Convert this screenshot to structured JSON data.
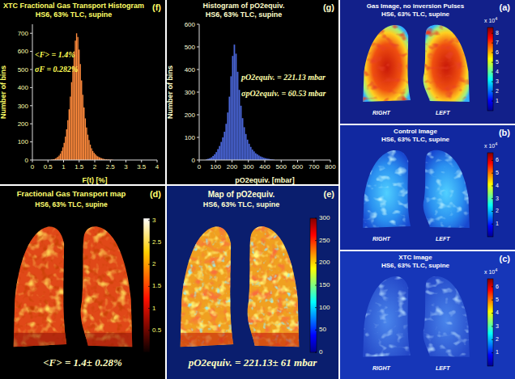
{
  "chart_data": [
    {
      "type": "histogram",
      "panel_label": "(f)",
      "title": "XTC Fractional Gas Transport Histogram",
      "subtitle": "HS6, 63% TLC, supine",
      "xlabel": "F(t) [%]",
      "ylabel": "Number of bins",
      "bins": [
        0.6,
        0.64,
        0.68,
        0.72,
        0.76,
        0.8,
        0.84,
        0.88,
        0.92,
        0.96,
        1,
        1.04,
        1.08,
        1.12,
        1.16,
        1.2,
        1.24,
        1.28,
        1.32,
        1.36,
        1.4,
        1.44,
        1.48,
        1.52,
        1.56,
        1.6,
        1.64,
        1.68,
        1.72,
        1.76,
        1.8,
        1.84,
        1.88,
        1.92,
        1.96,
        2,
        2.04,
        2.08,
        2.12,
        2.16,
        2.2,
        2.24,
        2.28,
        2.32,
        2.36,
        2.4,
        2.44,
        2.48,
        2.52,
        2.56,
        2.6
      ],
      "counts": [
        2,
        3,
        5,
        8,
        12,
        18,
        25,
        35,
        50,
        70,
        95,
        130,
        170,
        220,
        280,
        350,
        430,
        520,
        600,
        660,
        700,
        680,
        610,
        530,
        440,
        360,
        290,
        230,
        180,
        140,
        110,
        85,
        65,
        50,
        40,
        32,
        25,
        20,
        16,
        13,
        10,
        8,
        6,
        5,
        4,
        3,
        3,
        2,
        2,
        1
      ],
      "color": "#ff8a3c",
      "xlim": [
        0,
        4
      ],
      "xticks": [
        0,
        0.5,
        1,
        1.5,
        2,
        2.5,
        3,
        3.5,
        4
      ],
      "ylim": [
        0,
        750
      ],
      "yticks": [
        0,
        100,
        200,
        300,
        400,
        500,
        600,
        700
      ],
      "grid": false,
      "annotations": [
        "<F> = 1.4%",
        "σF = 0.282%"
      ]
    },
    {
      "type": "histogram",
      "panel_label": "(g)",
      "title": "Histogram of pO2equiv.",
      "subtitle": "HS6, 63% TLC, supine",
      "xlabel": "pO2equiv. [mbar]",
      "ylabel": "Number of bins",
      "bins": [
        40,
        50,
        60,
        70,
        80,
        90,
        100,
        110,
        120,
        130,
        140,
        150,
        160,
        170,
        180,
        190,
        200,
        210,
        220,
        230,
        240,
        250,
        260,
        270,
        280,
        290,
        300,
        310,
        320,
        330,
        340,
        350,
        360,
        370,
        380,
        390,
        400,
        410,
        420,
        430,
        440,
        450,
        460
      ],
      "counts": [
        3,
        5,
        8,
        12,
        18,
        25,
        35,
        48,
        62,
        80,
        100,
        125,
        160,
        210,
        280,
        370,
        460,
        510,
        470,
        390,
        310,
        240,
        185,
        145,
        115,
        90,
        72,
        58,
        46,
        38,
        30,
        25,
        20,
        16,
        13,
        10,
        8,
        6,
        5,
        4,
        3,
        2
      ],
      "color": "#4a66d8",
      "xlim": [
        0,
        800
      ],
      "xticks": [
        0,
        100,
        200,
        300,
        400,
        500,
        600,
        700,
        800
      ],
      "ylim": [
        0,
        600
      ],
      "yticks": [
        0,
        100,
        200,
        300,
        400,
        500,
        600
      ],
      "grid": false,
      "annotations": [
        "pO2equiv. = 221.13 mbar",
        "σpO2equiv. = 60.53 mbar"
      ]
    }
  ],
  "maps": [
    {
      "panel_label": "(d)",
      "title": "Fractional Gas Transport map",
      "subtitle": "HS6, 63% TLC, supine",
      "annotation": "<F> = 1.4± 0.28%",
      "colorbar": {
        "range": [
          0,
          3.05
        ],
        "ticks": [
          0.5,
          1,
          1.5,
          2,
          2.5,
          3
        ]
      }
    },
    {
      "panel_label": "(e)",
      "title": "Map of pO2equiv.",
      "subtitle": "HS6, 63% TLC, supine",
      "annotation": "pO2equiv. = 221.13± 61 mbar",
      "colorbar": {
        "range": [
          0,
          300
        ],
        "ticks": [
          0,
          50,
          100,
          150,
          200,
          250,
          300
        ]
      }
    }
  ],
  "images": [
    {
      "panel_label": "(a)",
      "title": "Gas Image, no inversion Pulses",
      "subtitle": "HS6, 63% TLC, supine",
      "side_labels": [
        "RIGHT",
        "LEFT"
      ],
      "colorbar": {
        "range": [
          0,
          8.6
        ],
        "ticks": [
          1,
          2,
          3,
          4,
          5,
          6,
          7,
          8
        ],
        "multiplier": "x 10",
        "exponent": 4
      }
    },
    {
      "panel_label": "(b)",
      "title": "Control Image",
      "subtitle": "HS6, 63% TLC, supine",
      "side_labels": [
        "RIGHT",
        "LEFT"
      ],
      "colorbar": {
        "range": [
          0,
          6.6
        ],
        "ticks": [
          1,
          2,
          3,
          4,
          5,
          6
        ],
        "multiplier": "x 10",
        "exponent": 4
      }
    },
    {
      "panel_label": "(c)",
      "title": "XTC Image",
      "subtitle": "HS6, 63% TLC, supine",
      "side_labels": [
        "RIGHT",
        "LEFT"
      ],
      "colorbar": {
        "range": [
          0,
          6.6
        ],
        "ticks": [
          1,
          2,
          3,
          4,
          5,
          6
        ],
        "multiplier": "x 10",
        "exponent": 4
      }
    }
  ]
}
